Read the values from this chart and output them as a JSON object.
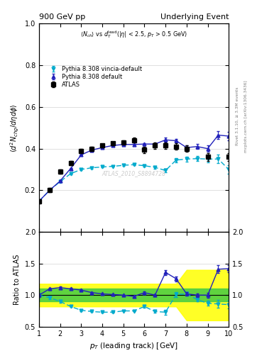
{
  "title_left": "900 GeV pp",
  "title_right": "Underlying Event",
  "ylabel_main": "$\\langle d^2 N_{chg}/d\\eta d\\phi \\rangle$",
  "ylabel_ratio": "Ratio to ATLAS",
  "xlabel": "$p_T$ (leading track) [GeV]",
  "watermark": "ATLAS_2010_S8894728",
  "right_label": "mcplots.cern.ch [arXiv:1306.3436]",
  "rivet_label": "Rivet 3.1.10, ≥ 3.3M events",
  "atlas_x": [
    1.0,
    1.5,
    2.0,
    2.5,
    3.0,
    3.5,
    4.0,
    4.5,
    5.0,
    5.5,
    6.0,
    6.5,
    7.0,
    7.5,
    8.0,
    9.0,
    10.0
  ],
  "atlas_y": [
    0.148,
    0.2,
    0.29,
    0.33,
    0.388,
    0.398,
    0.415,
    0.425,
    0.43,
    0.44,
    0.395,
    0.415,
    0.415,
    0.41,
    0.4,
    0.36,
    0.36
  ],
  "atlas_yerr": [
    0.01,
    0.01,
    0.01,
    0.01,
    0.01,
    0.01,
    0.008,
    0.008,
    0.008,
    0.012,
    0.015,
    0.015,
    0.015,
    0.015,
    0.015,
    0.018,
    0.018
  ],
  "py_def_x": [
    1.0,
    1.5,
    2.0,
    2.5,
    3.0,
    3.5,
    4.0,
    4.5,
    5.0,
    5.5,
    6.0,
    6.5,
    7.0,
    7.5,
    8.0,
    8.5,
    9.0,
    9.5,
    10.0
  ],
  "py_def_y": [
    0.148,
    0.2,
    0.245,
    0.305,
    0.37,
    0.393,
    0.405,
    0.415,
    0.42,
    0.42,
    0.422,
    0.422,
    0.442,
    0.438,
    0.405,
    0.41,
    0.4,
    0.465,
    0.46
  ],
  "py_def_yerr": [
    0.003,
    0.003,
    0.003,
    0.003,
    0.003,
    0.003,
    0.003,
    0.003,
    0.003,
    0.003,
    0.005,
    0.005,
    0.01,
    0.01,
    0.012,
    0.012,
    0.015,
    0.02,
    0.02
  ],
  "py_vin_x": [
    1.0,
    1.5,
    2.0,
    2.5,
    3.0,
    3.5,
    4.0,
    4.5,
    5.0,
    5.5,
    6.0,
    6.5,
    7.0,
    7.5,
    8.0,
    8.5,
    9.0,
    9.5,
    10.0
  ],
  "py_vin_y": [
    0.148,
    0.2,
    0.242,
    0.28,
    0.3,
    0.308,
    0.312,
    0.315,
    0.32,
    0.323,
    0.318,
    0.31,
    0.295,
    0.345,
    0.35,
    0.352,
    0.35,
    0.35,
    0.3
  ],
  "py_vin_yerr": [
    0.003,
    0.003,
    0.003,
    0.003,
    0.003,
    0.003,
    0.003,
    0.003,
    0.003,
    0.003,
    0.005,
    0.005,
    0.01,
    0.01,
    0.012,
    0.012,
    0.015,
    0.02,
    0.02
  ],
  "ratio_def_x": [
    1.0,
    1.5,
    2.0,
    2.5,
    3.0,
    3.5,
    4.0,
    4.5,
    5.0,
    5.5,
    6.0,
    6.5,
    7.0,
    7.5,
    8.0,
    8.5,
    9.0,
    9.5,
    10.0
  ],
  "ratio_def_y": [
    1.0,
    1.1,
    1.12,
    1.1,
    1.08,
    1.04,
    1.02,
    1.01,
    1.0,
    0.98,
    1.04,
    1.0,
    1.36,
    1.26,
    1.02,
    1.0,
    1.0,
    1.41,
    1.42
  ],
  "ratio_def_yerr": [
    0.03,
    0.02,
    0.015,
    0.012,
    0.01,
    0.008,
    0.008,
    0.008,
    0.008,
    0.01,
    0.015,
    0.015,
    0.04,
    0.04,
    0.03,
    0.03,
    0.04,
    0.06,
    0.06
  ],
  "ratio_vin_x": [
    1.0,
    1.5,
    2.0,
    2.5,
    3.0,
    3.5,
    4.0,
    4.5,
    5.0,
    5.5,
    6.0,
    6.5,
    7.0,
    7.5,
    8.0,
    8.5,
    9.0,
    9.5,
    10.0
  ],
  "ratio_vin_y": [
    1.0,
    0.96,
    0.9,
    0.82,
    0.76,
    0.74,
    0.73,
    0.73,
    0.75,
    0.75,
    0.82,
    0.74,
    0.73,
    1.01,
    1.02,
    0.93,
    0.87,
    0.86,
    0.85
  ],
  "ratio_vin_yerr": [
    0.03,
    0.02,
    0.015,
    0.012,
    0.01,
    0.008,
    0.008,
    0.008,
    0.008,
    0.01,
    0.015,
    0.015,
    0.04,
    0.04,
    0.03,
    0.03,
    0.04,
    0.06,
    0.06
  ],
  "band_x": [
    1.0,
    1.5,
    2.0,
    2.5,
    3.0,
    3.5,
    4.0,
    4.5,
    5.0,
    5.5,
    6.0,
    6.5,
    7.0,
    7.5,
    8.0,
    8.5,
    9.0,
    9.5,
    10.0
  ],
  "band_yellow_lo": [
    0.82,
    0.82,
    0.82,
    0.82,
    0.82,
    0.82,
    0.82,
    0.82,
    0.82,
    0.82,
    0.82,
    0.82,
    0.82,
    0.82,
    0.6,
    0.6,
    0.6,
    0.6,
    0.6
  ],
  "band_yellow_hi": [
    1.18,
    1.18,
    1.18,
    1.18,
    1.18,
    1.18,
    1.18,
    1.18,
    1.18,
    1.18,
    1.18,
    1.18,
    1.18,
    1.18,
    1.4,
    1.4,
    1.4,
    1.4,
    1.4
  ],
  "band_green_lo": [
    0.9,
    0.9,
    0.9,
    0.9,
    0.9,
    0.9,
    0.9,
    0.9,
    0.9,
    0.9,
    0.9,
    0.9,
    0.9,
    0.9,
    0.9,
    0.9,
    0.9,
    0.9,
    0.9
  ],
  "band_green_hi": [
    1.1,
    1.1,
    1.1,
    1.1,
    1.1,
    1.1,
    1.1,
    1.1,
    1.1,
    1.1,
    1.1,
    1.1,
    1.1,
    1.1,
    1.1,
    1.1,
    1.1,
    1.1,
    1.1
  ],
  "xlim": [
    1.0,
    10.0
  ],
  "ylim_main": [
    0.0,
    1.0
  ],
  "ylim_ratio": [
    0.5,
    2.0
  ],
  "color_blue": "#2222bb",
  "color_cyan": "#00aacc",
  "color_black": "#000000",
  "color_yellow": "#ffff00",
  "color_green": "#44cc44",
  "yticks_main": [
    0.2,
    0.4,
    0.6,
    0.8,
    1.0
  ],
  "yticks_ratio": [
    0.5,
    1.0,
    1.5,
    2.0
  ],
  "xticks": [
    1,
    2,
    3,
    4,
    5,
    6,
    7,
    8,
    9,
    10
  ]
}
